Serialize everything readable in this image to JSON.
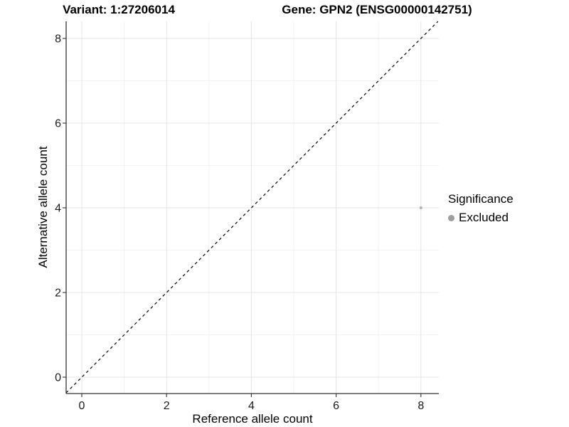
{
  "header": {
    "variant_title": "Variant: 1:27206014",
    "gene_title": "Gene: GPN2 (ENSG00000142751)"
  },
  "chart_data": {
    "type": "scatter",
    "title_left": "Variant: 1:27206014",
    "title_right": "Gene: GPN2 (ENSG00000142751)",
    "xlabel": "Reference allele count",
    "ylabel": "Alternative allele count",
    "xlim": [
      -0.37,
      8.42
    ],
    "ylim": [
      -0.39,
      8.4
    ],
    "x_major_ticks": [
      0,
      2,
      4,
      6,
      8
    ],
    "x_minor_ticks": [
      1,
      3,
      5,
      7
    ],
    "y_major_ticks": [
      0,
      2,
      4,
      6,
      8
    ],
    "y_minor_ticks": [
      1,
      3,
      5,
      7
    ],
    "grid": true,
    "points": [
      {
        "x": 8,
        "y": 4,
        "significance": "Excluded"
      }
    ],
    "reference_line": {
      "slope": 1,
      "intercept": 0,
      "style": "dashed",
      "color": "#000000"
    },
    "legend_position": "right",
    "style": {
      "background": "#ffffff",
      "grid_major_color": "#e4e4e4",
      "grid_minor_color": "#f2f2f2",
      "axis_line_color": "#333333",
      "tick_label_color": "#1a1a1a",
      "point_color": "#b3b3b3"
    }
  },
  "legend": {
    "title": "Significance",
    "items": [
      {
        "label": "Excluded",
        "color": "#9e9e9e"
      }
    ]
  }
}
